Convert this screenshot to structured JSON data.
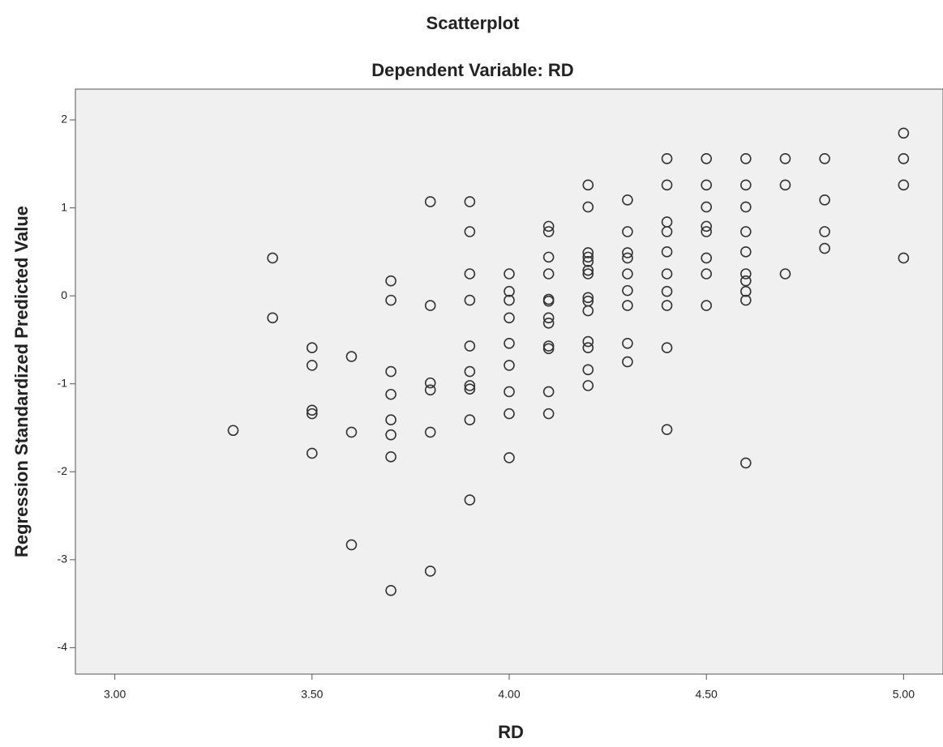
{
  "chart_data": {
    "type": "scatter",
    "title": "Scatterplot",
    "subtitle": "Dependent Variable: RD",
    "x_label": "RD",
    "y_label": "Regression Standardized Predicted Value",
    "xlim": [
      2.9,
      5.1
    ],
    "ylim": [
      -4.3,
      2.35
    ],
    "xticks": [
      {
        "value": 3,
        "label": "3.00"
      },
      {
        "value": 3.5,
        "label": "3.50"
      },
      {
        "value": 4,
        "label": "4.00"
      },
      {
        "value": 4.5,
        "label": "4.50"
      },
      {
        "value": 5,
        "label": "5.00"
      }
    ],
    "yticks": [
      -4,
      -3,
      -2,
      -1,
      0,
      1,
      2
    ],
    "marker_color": "#333333",
    "background": "#f0f0f0",
    "x": [
      3.3,
      3.4,
      3.4,
      3.5,
      3.5,
      3.5,
      3.5,
      3.5,
      3.6,
      3.6,
      3.6,
      3.7,
      3.7,
      3.7,
      3.7,
      3.7,
      3.7,
      3.7,
      3.7,
      3.8,
      3.8,
      3.8,
      3.8,
      3.8,
      3.8,
      3.9,
      3.9,
      3.9,
      3.9,
      3.9,
      3.9,
      3.9,
      3.9,
      3.9,
      3.9,
      4.0,
      4.0,
      4.0,
      4.0,
      4.0,
      4.0,
      4.0,
      4.0,
      4.0,
      4.1,
      4.1,
      4.1,
      4.1,
      4.1,
      4.1,
      4.1,
      4.1,
      4.1,
      4.1,
      4.1,
      4.1,
      4.2,
      4.2,
      4.2,
      4.2,
      4.2,
      4.2,
      4.2,
      4.2,
      4.2,
      4.2,
      4.2,
      4.2,
      4.2,
      4.2,
      4.3,
      4.3,
      4.3,
      4.3,
      4.3,
      4.3,
      4.3,
      4.3,
      4.3,
      4.4,
      4.4,
      4.4,
      4.4,
      4.4,
      4.4,
      4.4,
      4.4,
      4.4,
      4.4,
      4.5,
      4.5,
      4.5,
      4.5,
      4.5,
      4.5,
      4.5,
      4.5,
      4.6,
      4.6,
      4.6,
      4.6,
      4.6,
      4.6,
      4.6,
      4.6,
      4.6,
      4.6,
      4.7,
      4.7,
      4.7,
      4.8,
      4.8,
      4.8,
      4.8,
      5.0,
      5.0,
      5.0,
      5.0
    ],
    "values": [
      -1.53,
      0.43,
      -0.25,
      -0.59,
      -0.79,
      -1.3,
      -1.34,
      -1.79,
      -0.69,
      -1.55,
      -2.83,
      0.17,
      -0.05,
      -0.86,
      -1.12,
      -1.41,
      -1.58,
      -1.83,
      -3.35,
      1.07,
      -0.11,
      -0.99,
      -1.07,
      -1.55,
      -3.13,
      1.07,
      0.73,
      0.25,
      -0.05,
      -0.57,
      -0.86,
      -1.02,
      -1.06,
      -1.41,
      -2.32,
      0.25,
      0.05,
      -0.05,
      -0.25,
      -0.54,
      -0.79,
      -1.09,
      -1.34,
      -1.84,
      0.79,
      0.73,
      0.44,
      0.25,
      -0.04,
      -0.06,
      -0.25,
      -0.31,
      -0.57,
      -0.6,
      -1.09,
      -1.34,
      1.26,
      1.01,
      0.49,
      0.44,
      0.39,
      0.29,
      0.25,
      -0.02,
      -0.06,
      -0.17,
      -0.52,
      -0.59,
      -0.84,
      -1.02,
      1.09,
      0.73,
      0.49,
      0.43,
      0.25,
      0.06,
      -0.11,
      -0.54,
      -0.75,
      1.56,
      1.26,
      0.84,
      0.73,
      0.5,
      0.25,
      0.05,
      -0.11,
      -0.59,
      -1.52,
      1.56,
      1.26,
      1.01,
      0.79,
      0.73,
      0.43,
      0.25,
      -0.11,
      1.56,
      1.26,
      1.01,
      0.73,
      0.5,
      0.25,
      0.17,
      0.05,
      -0.05,
      -1.9,
      1.56,
      1.26,
      0.25,
      1.56,
      1.09,
      0.73,
      0.54,
      1.85,
      1.56,
      1.26,
      0.43
    ]
  }
}
